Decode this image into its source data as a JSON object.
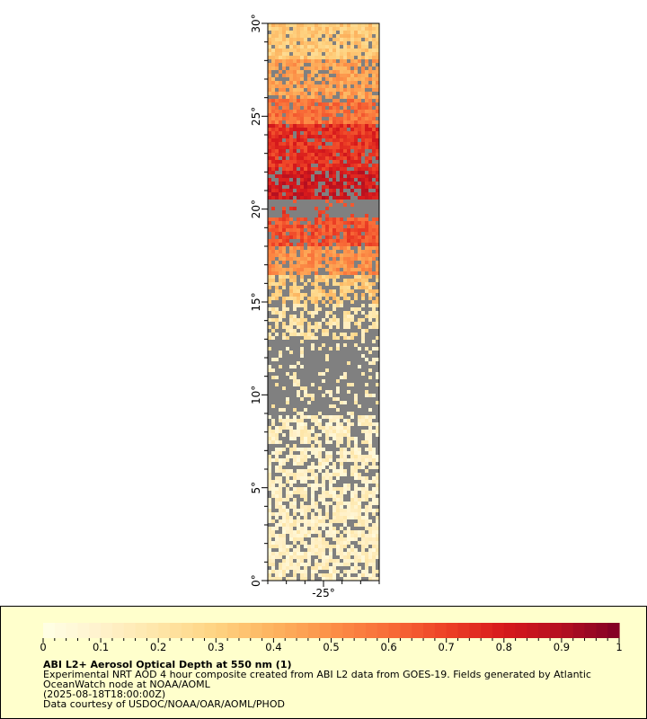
{
  "map": {
    "lat_ticks": [
      {
        "value": 30,
        "label": "30°"
      },
      {
        "value": 25,
        "label": "25°"
      },
      {
        "value": 20,
        "label": "20°"
      },
      {
        "value": 15,
        "label": "15°"
      },
      {
        "value": 10,
        "label": "10°"
      },
      {
        "value": 5,
        "label": "5°"
      },
      {
        "value": 0,
        "label": "0°"
      }
    ],
    "lat_range": [
      0,
      30
    ],
    "lon_ticks": [
      {
        "value": -25,
        "label": "-25°"
      }
    ],
    "lon_range": [
      -28,
      -22
    ],
    "no_data_color": "#808080",
    "aod_bands": [
      {
        "lat_from": 28,
        "lat_to": 30,
        "level": 0.33,
        "missing": 0.1
      },
      {
        "lat_from": 26,
        "lat_to": 28,
        "level": 0.45,
        "missing": 0.2
      },
      {
        "lat_from": 24.5,
        "lat_to": 26,
        "level": 0.58,
        "missing": 0.12
      },
      {
        "lat_from": 22,
        "lat_to": 24.5,
        "level": 0.74,
        "missing": 0.1
      },
      {
        "lat_from": 20.5,
        "lat_to": 22,
        "level": 0.82,
        "missing": 0.3
      },
      {
        "lat_from": 19.5,
        "lat_to": 20.5,
        "level": 0.7,
        "missing": 0.85
      },
      {
        "lat_from": 18,
        "lat_to": 19.5,
        "level": 0.66,
        "missing": 0.15
      },
      {
        "lat_from": 16.5,
        "lat_to": 18,
        "level": 0.5,
        "missing": 0.2
      },
      {
        "lat_from": 15,
        "lat_to": 16.5,
        "level": 0.32,
        "missing": 0.35
      },
      {
        "lat_from": 13,
        "lat_to": 15,
        "level": 0.2,
        "missing": 0.5
      },
      {
        "lat_from": 9,
        "lat_to": 13,
        "level": 0.15,
        "missing": 0.8
      },
      {
        "lat_from": 5,
        "lat_to": 9,
        "level": 0.12,
        "missing": 0.35
      },
      {
        "lat_from": 0,
        "lat_to": 5,
        "level": 0.12,
        "missing": 0.25
      }
    ]
  },
  "colorbar": {
    "min": 0,
    "max": 1,
    "tick_labels": [
      "0",
      "0.1",
      "0.2",
      "0.3",
      "0.4",
      "0.5",
      "0.6",
      "0.7",
      "0.8",
      "0.9",
      "1"
    ],
    "colors": [
      "#ffffe5",
      "#fff2cc",
      "#fee6a8",
      "#fed381",
      "#fdb35f",
      "#fc9048",
      "#f86c38",
      "#ed4126",
      "#d7191c",
      "#b40f20",
      "#800026"
    ]
  },
  "caption": {
    "title": "ABI L2+ Aerosol Optical Depth at 550 nm (1)",
    "line1": "Experimental NRT AOD 4 hour composite created from ABI L2 data from GOES-19. Fields generated by Atlantic",
    "line2": "OceanWatch node at NOAA/AOML",
    "line3": "(2025-08-18T18:00:00Z)",
    "line4": "Data courtesy of USDOC/NOAA/OAR/AOML/PHOD"
  }
}
